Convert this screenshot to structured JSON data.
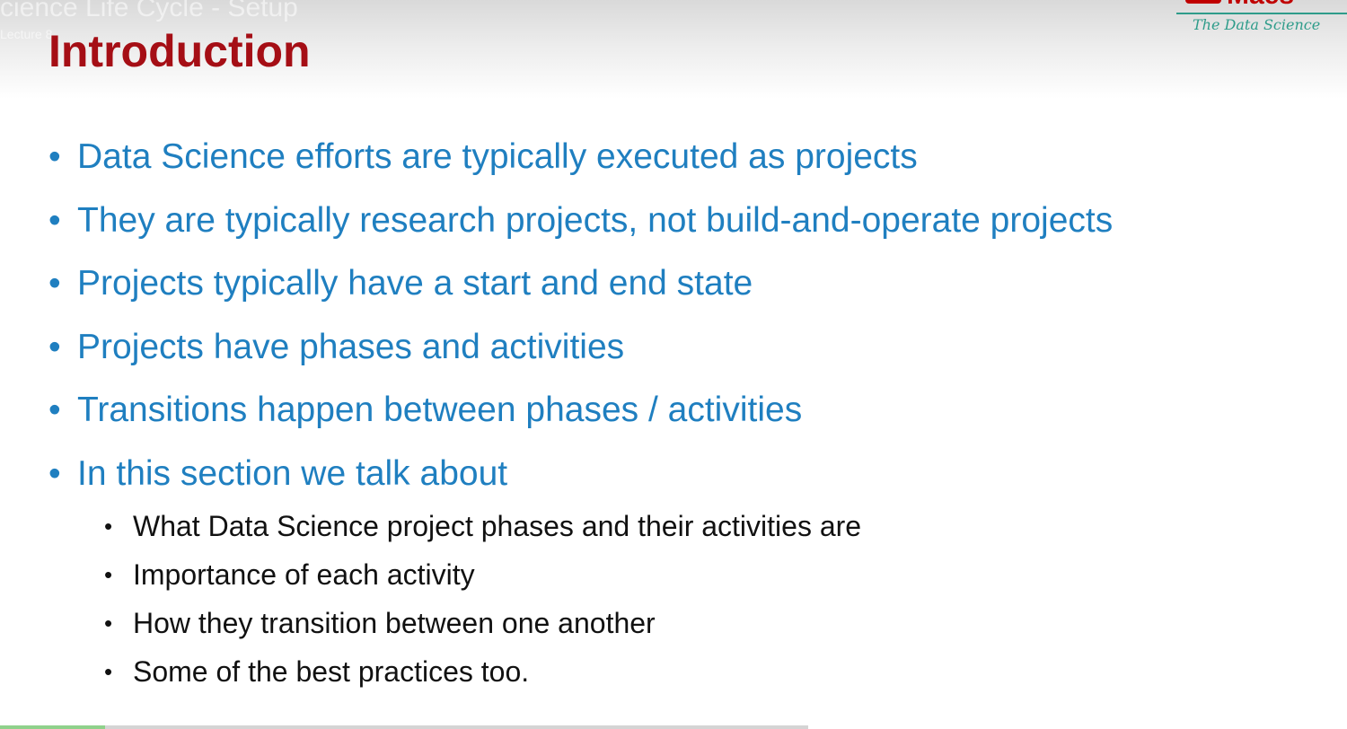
{
  "video": {
    "overlay_title": "cience Life Cycle - Setup",
    "overlay_subtitle": "Lecture 8",
    "progress_fraction": 0.13
  },
  "logo": {
    "wordmark": "Maes",
    "tagline": "The Data Science"
  },
  "slide": {
    "title": "Introduction",
    "bullet_symbol": "•",
    "bullets": [
      "Data Science efforts are typically executed as projects",
      "They are typically research projects, not build-and-operate projects",
      "Projects typically have a start and end state",
      "Projects have phases and activities",
      "Transitions happen between phases / activities",
      "In this section we talk about"
    ],
    "sub_bullets": [
      "What Data Science project phases and their activities are",
      "Importance of each activity",
      "How they transition between one another",
      "Some of the best practices too."
    ]
  },
  "colors": {
    "title": "#a50e15",
    "bullet_text": "#1f7fc0",
    "sub_bullet_text": "#111111",
    "logo_red": "#c00000",
    "logo_teal": "#2e9c8a"
  }
}
